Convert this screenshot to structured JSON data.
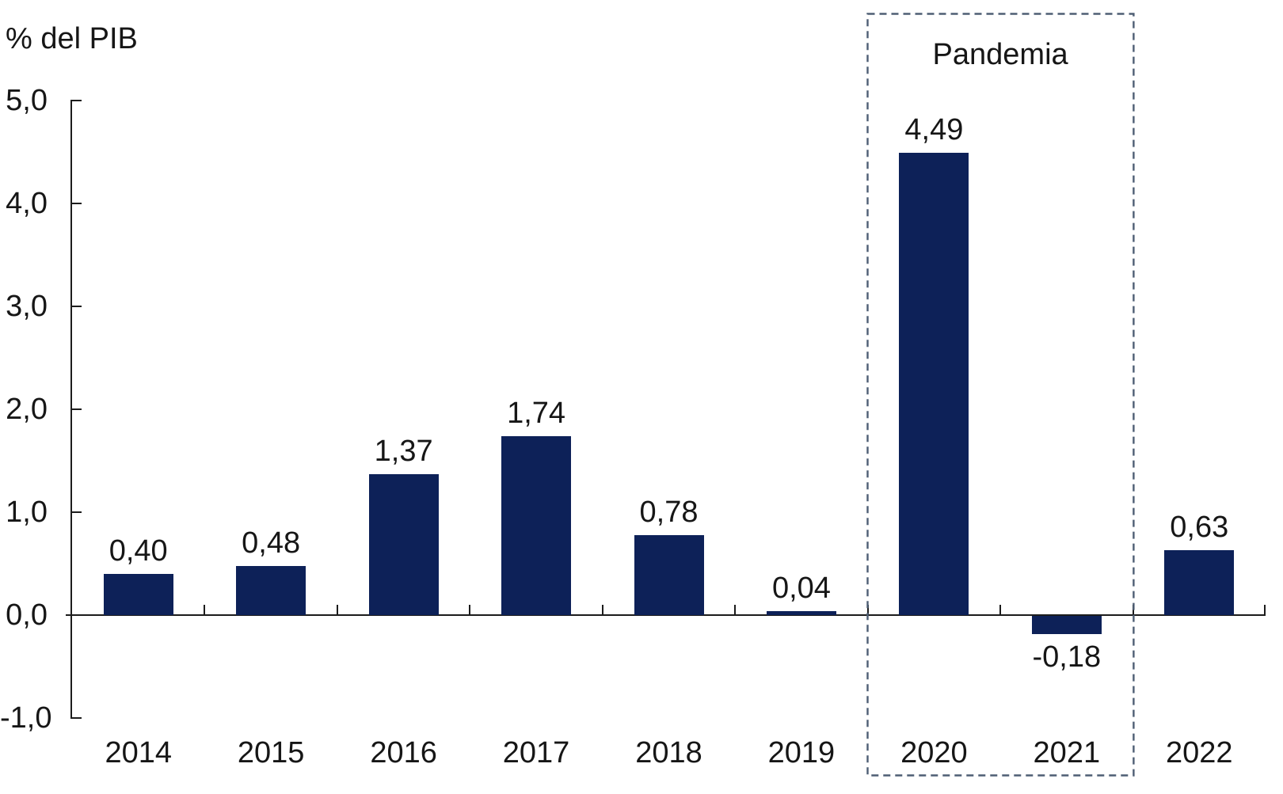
{
  "chart_data": {
    "type": "bar",
    "title": "",
    "xlabel": "",
    "ylabel": "% del PIB",
    "categories": [
      "2014",
      "2015",
      "2016",
      "2017",
      "2018",
      "2019",
      "2020",
      "2021",
      "2022"
    ],
    "values": [
      0.4,
      0.48,
      1.37,
      1.74,
      0.78,
      0.04,
      4.49,
      -0.18,
      0.63
    ],
    "value_labels": [
      "0,40",
      "0,48",
      "1,37",
      "1,74",
      "0,78",
      "0,04",
      "4,49",
      "-0,18",
      "0,63"
    ],
    "ylim": [
      -1.0,
      5.0
    ],
    "yticks": [
      5.0,
      4.0,
      3.0,
      2.0,
      1.0,
      0.0,
      -1.0
    ],
    "ytick_labels": [
      "5,0",
      "4,0",
      "3,0",
      "2,0",
      "1,0",
      "0,0",
      "-1,0"
    ],
    "grid": false,
    "legend": null,
    "bar_color": "#0d2158",
    "axis_color": "#1c1c1c",
    "text_color": "#161616",
    "annotation_box": {
      "label": "Pandemia",
      "from_category": "2020",
      "to_category": "2021",
      "border_color": "#4e5e74"
    }
  }
}
